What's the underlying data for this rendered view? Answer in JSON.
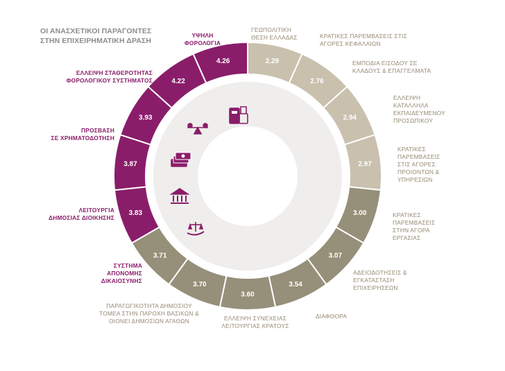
{
  "chart_data": {
    "type": "donut",
    "title": "ΟΙ ΑΝΑΣΧΕΤΙΚΟΙ ΠΑΡΑΓΟΝΤΕΣ ΣΤΗΝ ΕΠΙΧΕΙΡΗΜΑΤΙΚΗ ΔΡΑΣΗ",
    "title_lines": [
      "ΟΙ ΑΝΑΣΧΕΤΙΚΟΙ ΠΑΡΑΓΟΝΤΕΣ",
      "ΣΤΗΝ ΕΠΙΧΕΙΡΗΜΑΤΙΚΗ ΔΡΑΣΗ"
    ],
    "colors": {
      "highlight": "#8a1d6a",
      "light_grey": "#c9c0ae",
      "dark_grey": "#968f79",
      "inner_disc": "#efeeec",
      "center": "#ffffff"
    },
    "segments": [
      {
        "label": "ΓΕΩΠΟΛΙΤΙΚΗ ΘΕΣΗ ΕΛΛΑΔΑΣ",
        "lines": [
          "ΓΕΩΠΟΛΙΤΙΚΗ",
          "ΘΕΣΗ ΕΛΛΑΔΑΣ"
        ],
        "value": 2.29,
        "value_label": "2.29",
        "group": "light"
      },
      {
        "label": "ΚΡΑΤΙΚΕΣ ΠΑΡΕΜΒΑΣΕΙΣ ΣΤΙΣ ΑΓΟΡΕΣ ΚΕΦΑΛΑΙΩΝ",
        "lines": [
          "ΚΡΑΤΙΚΕΣ ΠΑΡΕΜΒΑΣΕΙΣ ΣΤΙΣ",
          "ΑΓΟΡΕΣ ΚΕΦΑΛΑΙΩΝ"
        ],
        "value": 2.76,
        "value_label": "2.76",
        "group": "light"
      },
      {
        "label": "ΕΜΠΟΔΙΑ ΕΙΣΟΔΟΥ ΣΕ ΚΛΑΔΟΥΣ & ΕΠΑΓΓΕΛΜΑΤΑ",
        "lines": [
          "ΕΜΠΟΔΙΑ ΕΙΣΟΔΟΥ ΣΕ",
          "ΚΛΑΔΟΥΣ & ΕΠΑΓΓΕΛΜΑΤΑ"
        ],
        "value": 2.94,
        "value_label": "2.94",
        "group": "light"
      },
      {
        "label": "ΕΛΛΕΙΨΗ ΚΑΤΑΛΛΗΛΑ ΕΚΠΑΙΔΕΥΜΕΝΟΥ ΠΡΟΣΩΠΙΚΟΥ",
        "lines": [
          "ΕΛΛΕΙΨΗ",
          "ΚΑΤΑΛΛΗΛΑ",
          "ΕΚΠΑΙΔΕΥΜΕΝΟΥ",
          "ΠΡΟΣΩΠΙΚΟΥ"
        ],
        "value": 2.97,
        "value_label": "2.97",
        "group": "light"
      },
      {
        "label": "ΚΡΑΤΙΚΕΣ ΠΑΡΕΜΒΑΣΕΙΣ ΣΤΙΣ ΑΓΟΡΕΣ ΠΡΟΙΟΝΤΩΝ & ΥΠΗΡΕΣΙΩΝ",
        "lines": [
          "ΚΡΑΤΙΚΕΣ",
          "ΠΑΡΕΜΒΑΣΕΙΣ",
          "ΣΤΙΣ ΑΓΟΡΕΣ",
          "ΠΡΟΙΟΝΤΩΝ &",
          "ΥΠΗΡΕΣΙΩΝ"
        ],
        "value": 3.0,
        "value_label": "3.00",
        "group": "dark"
      },
      {
        "label": "ΚΡΑΤΙΚΕΣ ΠΑΡΕΜΒΑΣΕΙΣ ΣΤΗΝ ΑΓΟΡΑ ΕΡΓΑΣΙΑΣ",
        "lines": [
          "ΚΡΑΤΙΚΕΣ",
          "ΠΑΡΕΜΒΑΣΕΙΣ",
          "ΣΤΗΝ ΑΓΟΡΑ",
          "ΕΡΓΑΣΙΑΣ"
        ],
        "value": 3.07,
        "value_label": "3.07",
        "group": "dark"
      },
      {
        "label": "ΑΔΕΙΟΔΟΤΗΣΕΙΣ & ΕΓΚΑΤΑΣΤΑΣΗ ΕΠΙΧΕΙΡΗΣΕΩΝ",
        "lines": [
          "ΑΔΕΙΟΔΟΤΗΣΕΙΣ &",
          "ΕΓΚΑΤΑΣΤΑΣΗ",
          "ΕΠΙΧΕΙΡΗΣΕΩΝ"
        ],
        "value": 3.54,
        "value_label": "3.54",
        "group": "dark"
      },
      {
        "label": "ΔΙΑΦΘΟΡΑ",
        "lines": [
          "ΔΙΑΦΘΟΡΑ"
        ],
        "value": 3.6,
        "value_label": "3.60",
        "group": "dark"
      },
      {
        "label": "ΕΛΛΕΙΨΗ ΣΥΝΕΧΕΙΑΣ ΛΕΙΤΟΥΡΓΙΑΣ ΚΡΑΤΟΥΣ",
        "lines": [
          "ΕΛΛΕΙΨΗ ΣΥΝΕΧΕΙΑΣ",
          "ΛΕΙΤΟΥΡΓΙΑΣ ΚΡΑΤΟΥΣ"
        ],
        "value": 3.7,
        "value_label": "3.70",
        "group": "dark"
      },
      {
        "label": "ΠΑΡΑΓΩΓΙΚΟΤΗΤΑ ΔΗΜΟΣΙΟΥ ΤΟΜΕΑ ΣΤΗΝ ΠΑΡΟΧΗ ΒΑΣΙΚΩΝ & ΟΙΟΝΕΙ ΔΗΜΟΣΙΩΝ ΑΓΑΘΩΝ",
        "lines": [
          "ΠΑΡΑΓΩΓΙΚΟΤΗΤΑ ΔΗΜΟΣΙΟΥ",
          "ΤΟΜΕΑ ΣΤΗΝ ΠΑΡΟΧΗ ΒΑΣΙΚΩΝ &",
          "ΟΙΟΝΕΙ ΔΗΜΟΣΙΩΝ ΑΓΑΘΩΝ"
        ],
        "value": 3.71,
        "value_label": "3.71",
        "group": "dark"
      },
      {
        "label": "ΣΥΣΤΗΜΑ ΑΠΟΝΟΜΗΣ ΔΙΚΑΙΟΣΥΝΗΣ",
        "lines": [
          "ΣΥΣΤΗΜΑ",
          "ΑΠΟΝΟΜΗΣ",
          "ΔΙΚΑΙΟΣΥΝΗΣ"
        ],
        "value": 3.83,
        "value_label": "3.83",
        "group": "highlight"
      },
      {
        "label": "ΛΕΙΤΟΥΡΓΙΑ ΔΗΜΟΣΙΑΣ ΔΙΟΙΚΗΣΗΣ",
        "lines": [
          "ΛΕΙΤΟΥΡΓΙΑ",
          "ΔΗΜΟΣΙΑΣ ΔΙΟΙΚΗΣΗΣ"
        ],
        "value": 3.87,
        "value_label": "3.87",
        "group": "highlight"
      },
      {
        "label": "ΠΡΟΣΒΑΣΗ ΣΕ ΧΡΗΜΑΤΟΔΟΤΗΣΗ",
        "lines": [
          "ΠΡΟΣΒΑΣΗ",
          "ΣΕ ΧΡΗΜΑΤΟΔΟΤΗΣΗ"
        ],
        "value": 3.93,
        "value_label": "3.93",
        "group": "highlight"
      },
      {
        "label": "ΕΛΛΕΙΨΗ ΣΤΑΘΕΡΟΤΗΤΑΣ ΦΟΡΟΛΟΓΙΚΟΥ ΣΥΣΤΗΜΑΤΟΣ",
        "lines": [
          "ΕΛΛΕΙΨΗ ΣΤΑΘΕΡΟΤΗΤΑΣ",
          "ΦΟΡΟΛΟΓΙΚΟΥ ΣΥΣΤΗΜΑΤΟΣ"
        ],
        "value": 4.22,
        "value_label": "4.22",
        "group": "highlight"
      },
      {
        "label": "ΥΨΗΛΗ ΦΟΡΟΛΟΓΙΑ",
        "lines": [
          "ΥΨΗΛΗ",
          "ΦΟΡΟΛΟΓΙΑ"
        ],
        "value": 4.26,
        "value_label": "4.26",
        "group": "highlight"
      }
    ],
    "icons": [
      "tax-receipt-icon",
      "balance-scale-icon",
      "banknotes-icon",
      "public-building-icon",
      "justice-hand-icon"
    ]
  }
}
